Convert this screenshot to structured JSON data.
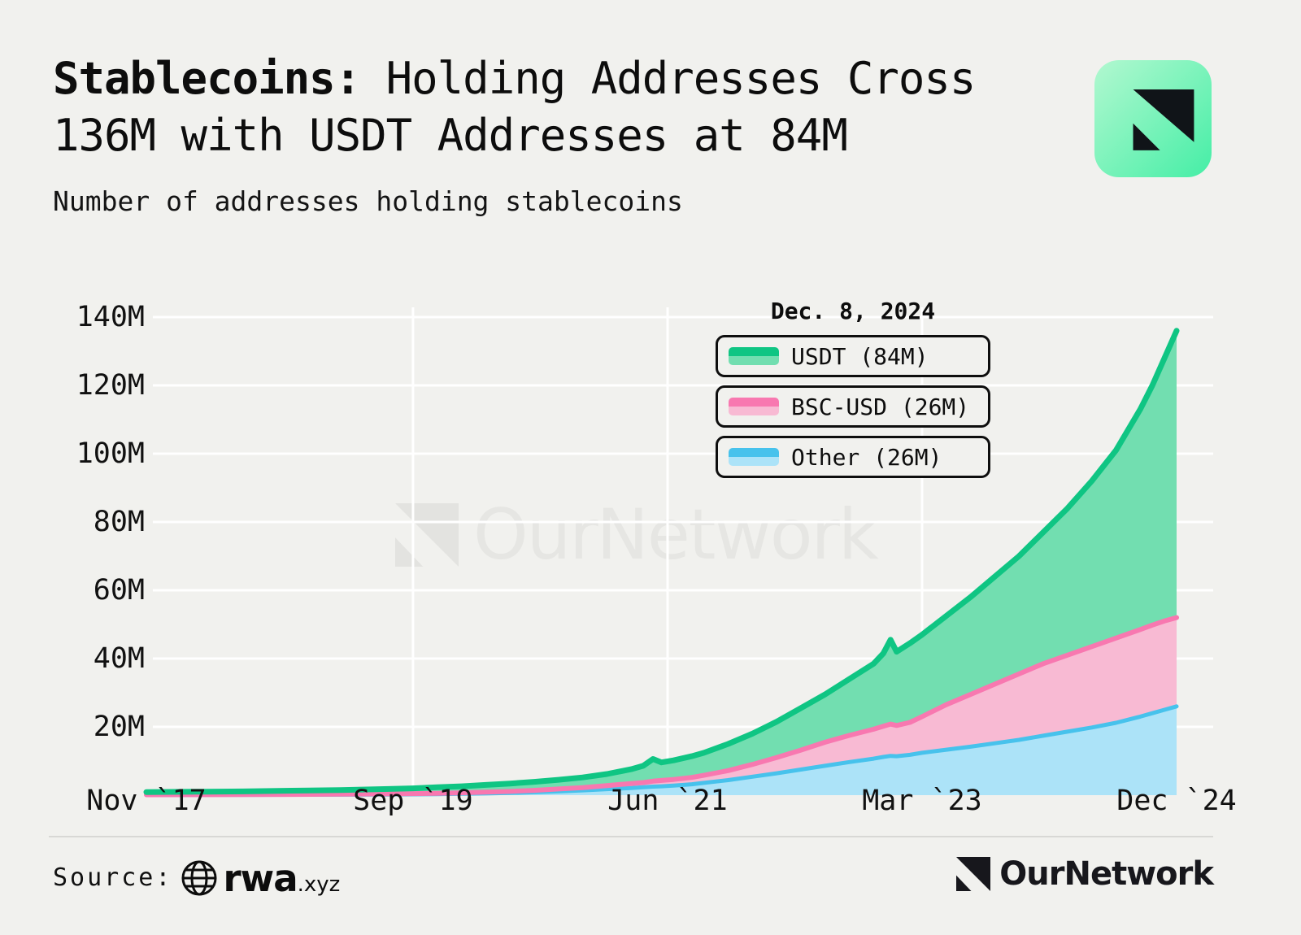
{
  "page": {
    "background": "#f1f1ee"
  },
  "header": {
    "title_bold": "Stablecoins:",
    "title_rest": " Holding Addresses Cross 136M with USDT Addresses at 84M",
    "subtitle": "Number of addresses holding stablecoins"
  },
  "annotation": {
    "date": "Dec. 8, 2024"
  },
  "legend": [
    {
      "label": "USDT (84M)",
      "line_color": "#0fc583",
      "fill_color": "#72deb0"
    },
    {
      "label": "BSC-USD (26M)",
      "line_color": "#f878b0",
      "fill_color": "#f8bad3"
    },
    {
      "label": "Other (26M)",
      "line_color": "#47c2ec",
      "fill_color": "#ace3f8"
    }
  ],
  "watermark": {
    "text": "OurNetwork"
  },
  "footer": {
    "source_label": "Source:",
    "source_name": "rwa",
    "source_tld": ".xyz",
    "brand": "OurNetwork"
  },
  "chart_data": {
    "type": "area",
    "stacked": true,
    "title": "Number of addresses holding stablecoins",
    "annotation": "Dec. 8, 2024",
    "x_unit": "months since Nov 2017",
    "x_tick_labels": [
      "Nov `17",
      "Sep `19",
      "Jun `21",
      "Mar `23",
      "Dec `24"
    ],
    "x_tick_months": [
      0,
      22,
      43,
      64,
      85
    ],
    "y_tick_labels": [
      "20M",
      "40M",
      "60M",
      "80M",
      "100M",
      "120M",
      "140M"
    ],
    "y_tick_values": [
      20,
      40,
      60,
      80,
      100,
      120,
      140
    ],
    "ylim": [
      0,
      140
    ],
    "grid": true,
    "legend_position": "top-right",
    "final_values_m": {
      "USDT": 84,
      "BSC-USD": 26,
      "Other": 26,
      "total": 136
    },
    "months": [
      0,
      4,
      8,
      12,
      16,
      20,
      22,
      24,
      26,
      28,
      30,
      32,
      34,
      36,
      38,
      40,
      41,
      41.8,
      42.5,
      43.5,
      45,
      46,
      48,
      50,
      52,
      54,
      56,
      58,
      60,
      60.8,
      61.4,
      61.9,
      63,
      64,
      66,
      68,
      70,
      72,
      74,
      76,
      78,
      80,
      82,
      83,
      84,
      85
    ],
    "series": [
      {
        "name": "Other",
        "line_color": "#47c2ec",
        "fill_color": "#ace3f8",
        "stroke_width": 5,
        "cum_values": [
          0.06,
          0.08,
          0.1,
          0.12,
          0.15,
          0.2,
          0.25,
          0.3,
          0.4,
          0.5,
          0.65,
          0.85,
          1.1,
          1.4,
          1.75,
          2.1,
          2.3,
          2.5,
          2.6,
          2.8,
          3.2,
          3.6,
          4.4,
          5.4,
          6.4,
          7.5,
          8.6,
          9.7,
          10.7,
          11.2,
          11.5,
          11.4,
          11.8,
          12.4,
          13.3,
          14.2,
          15.2,
          16.2,
          17.4,
          18.6,
          19.8,
          21.2,
          23.0,
          24.0,
          25.0,
          26.0
        ]
      },
      {
        "name": "BSC-USD",
        "line_color": "#f878b0",
        "fill_color": "#f8bad3",
        "stroke_width": 6,
        "cum_values": [
          0.12,
          0.15,
          0.18,
          0.22,
          0.28,
          0.38,
          0.45,
          0.55,
          0.7,
          0.9,
          1.1,
          1.4,
          1.8,
          2.2,
          2.8,
          3.4,
          3.7,
          4.1,
          4.3,
          4.6,
          5.2,
          5.8,
          7.2,
          9.0,
          11.0,
          13.2,
          15.5,
          17.5,
          19.3,
          20.2,
          20.8,
          20.4,
          21.3,
          23.0,
          26.5,
          29.5,
          32.5,
          35.5,
          38.5,
          41.0,
          43.5,
          46.0,
          48.5,
          49.8,
          51.0,
          52.0
        ]
      },
      {
        "name": "USDT",
        "line_color": "#0fc583",
        "fill_color": "#72deb0",
        "stroke_width": 7,
        "cum_values": [
          0.9,
          1.0,
          1.1,
          1.3,
          1.5,
          1.8,
          2.0,
          2.3,
          2.6,
          3.0,
          3.4,
          3.9,
          4.5,
          5.2,
          6.2,
          7.6,
          8.6,
          10.6,
          9.6,
          10.2,
          11.4,
          12.4,
          15.0,
          18.0,
          21.5,
          25.5,
          29.5,
          34.0,
          38.5,
          41.5,
          45.5,
          42.0,
          44.5,
          47.0,
          52.5,
          58.0,
          64.0,
          70.0,
          77.0,
          84.0,
          92.0,
          101.0,
          113.0,
          120.0,
          128.0,
          136.0
        ]
      }
    ]
  }
}
